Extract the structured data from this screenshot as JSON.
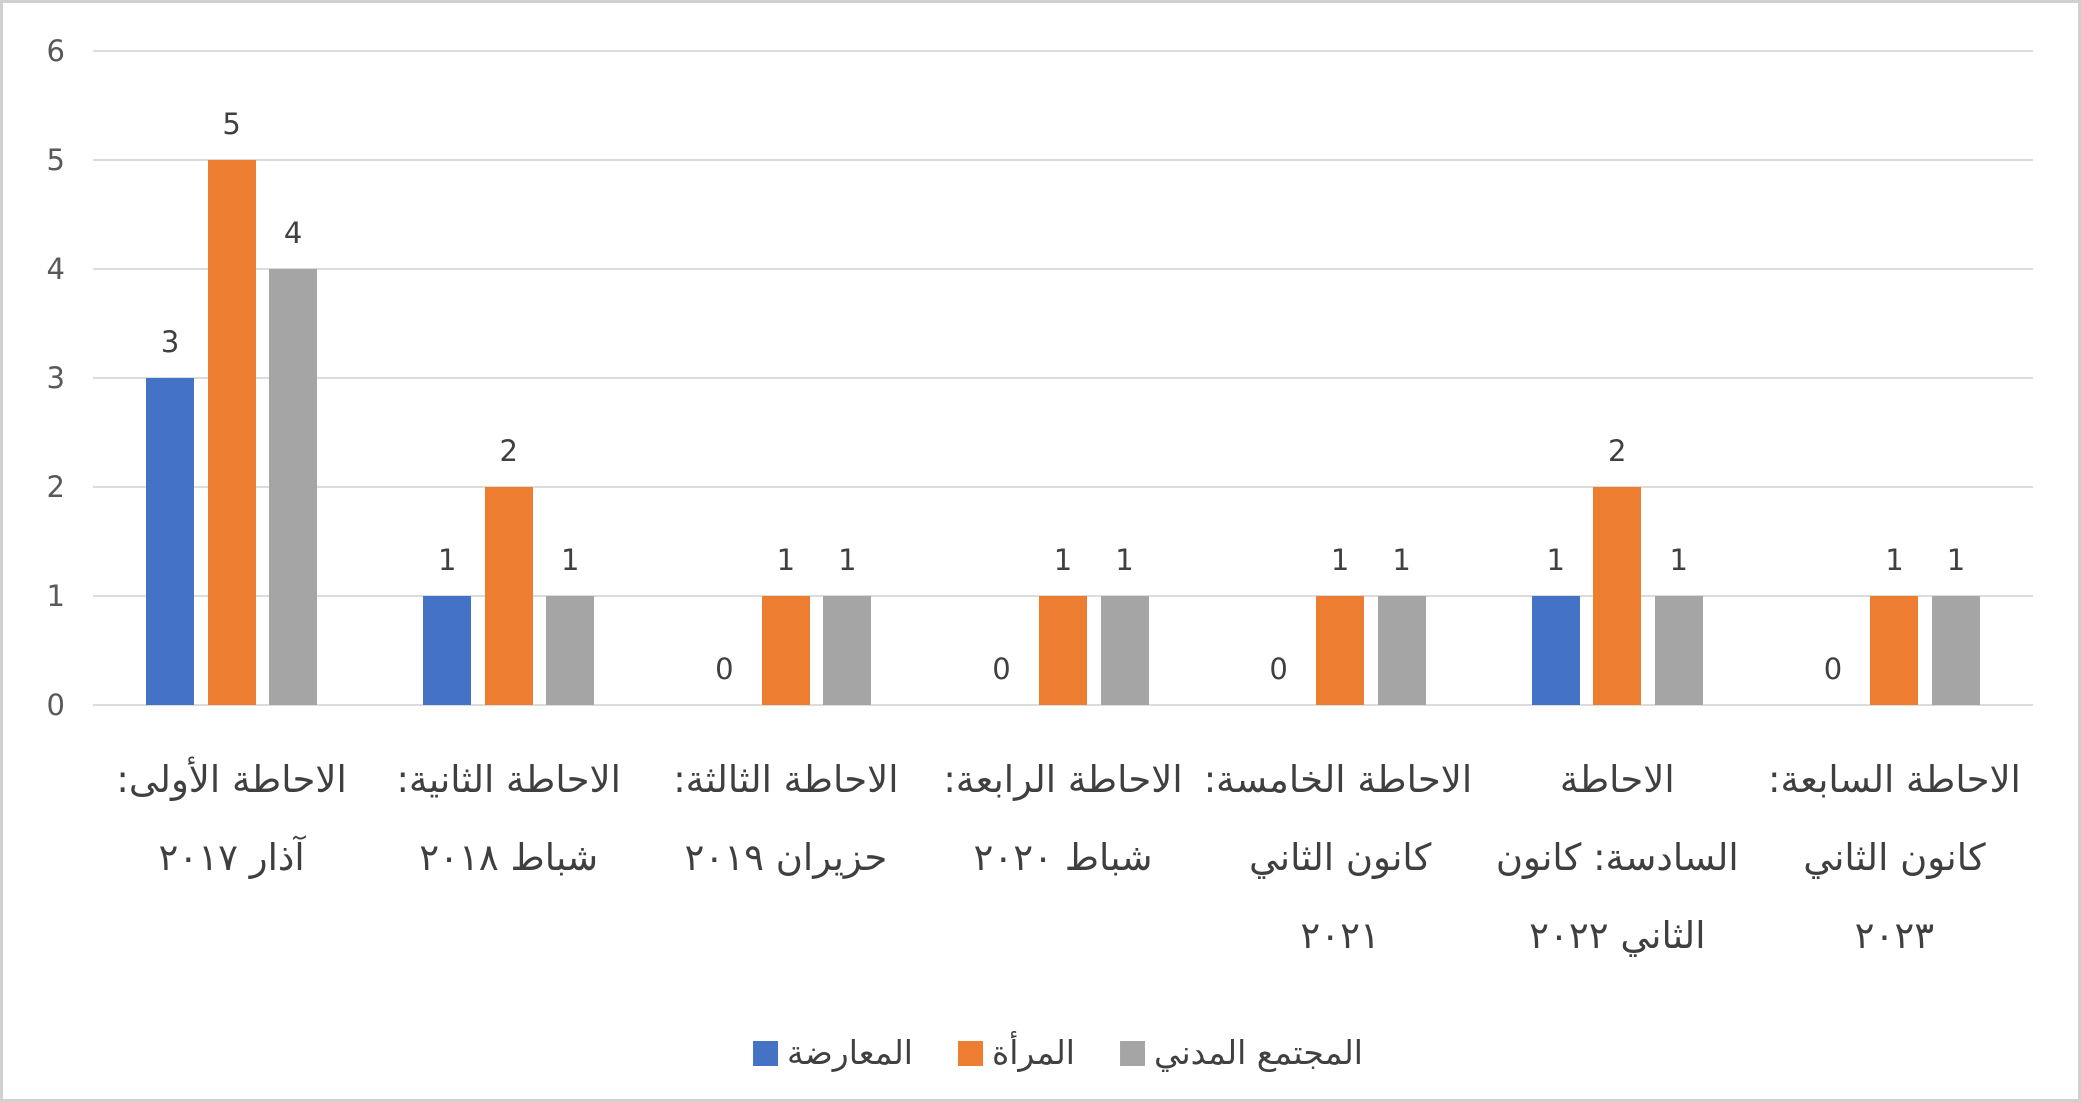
{
  "page": {
    "background": "#ffffff",
    "frame_border_color": "#d0d0d0",
    "gridline_color": "#dcdcdc",
    "axis_text_color": "#595959",
    "label_text_color": "#404040"
  },
  "chart_data": {
    "type": "bar",
    "title": "",
    "xlabel": "",
    "ylabel": "",
    "ylim": [
      0,
      6
    ],
    "yticks": [
      0,
      1,
      2,
      3,
      4,
      5,
      6
    ],
    "grid": true,
    "data_labels": true,
    "legend_position": "bottom-center",
    "rtl": true,
    "categories": [
      "الاحاطة الأولى: آذار ٢٠١٧",
      "الاحاطة الثانية: شباط ٢٠١٨",
      "الاحاطة الثالثة: حزيران ٢٠١٩",
      "الاحاطة الرابعة: شباط ٢٠٢٠",
      "الاحاطة الخامسة: كانون الثاني ٢٠٢١",
      "الاحاطة السادسة: كانون الثاني ٢٠٢٢",
      "الاحاطة السابعة: كانون الثاني ٢٠٢٣"
    ],
    "category_lines": [
      [
        "الاحاطة الأولى:",
        "آذار ٢٠١٧"
      ],
      [
        "الاحاطة الثانية:",
        "شباط ٢٠١٨"
      ],
      [
        "الاحاطة الثالثة:",
        "حزيران ٢٠١٩"
      ],
      [
        "الاحاطة الرابعة:",
        "شباط ٢٠٢٠"
      ],
      [
        "الاحاطة الخامسة:",
        "كانون الثاني",
        "٢٠٢١"
      ],
      [
        "الاحاطة",
        "السادسة: كانون",
        "الثاني ٢٠٢٢"
      ],
      [
        "الاحاطة السابعة:",
        "كانون الثاني",
        "٢٠٢٣"
      ]
    ],
    "series": [
      {
        "name": "المعارضة",
        "color": "#4472C4",
        "values": [
          3,
          1,
          0,
          0,
          0,
          1,
          0
        ]
      },
      {
        "name": "المرأة",
        "color": "#ED7D31",
        "values": [
          5,
          2,
          1,
          1,
          1,
          2,
          1
        ]
      },
      {
        "name": "المجتمع المدني",
        "color": "#A5A5A5",
        "values": [
          4,
          1,
          1,
          1,
          1,
          1,
          1
        ]
      }
    ]
  }
}
